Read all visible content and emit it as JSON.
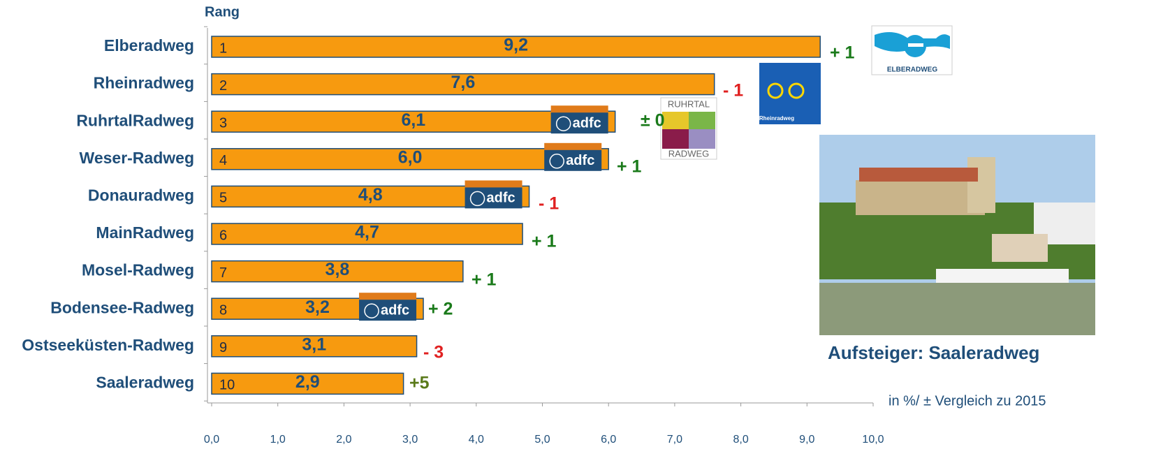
{
  "chart_data": {
    "type": "bar",
    "orientation": "horizontal",
    "y_axis_title": "Rang",
    "categories": [
      "Elberadweg",
      "Rheinradweg",
      "RuhrtalRadweg",
      "Weser-Radweg",
      "Donauradweg",
      "MainRadweg",
      "Mosel-Radweg",
      "Bodensee-Radweg",
      "Ostseeküsten-Radweg",
      "Saaleradweg"
    ],
    "values": [
      9.2,
      7.6,
      6.1,
      6.0,
      4.8,
      4.7,
      3.8,
      3.2,
      3.1,
      2.9
    ],
    "value_labels": [
      "9,2",
      "7,6",
      "6,1",
      "6,0",
      "4,8",
      "4,7",
      "3,8",
      "3,2",
      "3,1",
      "2,9"
    ],
    "ranks": [
      1,
      2,
      3,
      4,
      5,
      6,
      7,
      8,
      9,
      10
    ],
    "changes": [
      "+ 1",
      "- 1",
      "± 0",
      "+ 1",
      "- 1",
      "+ 1",
      "+ 1",
      "+ 2",
      "- 3",
      "+5"
    ],
    "change_colors": [
      "#1a7a1a",
      "#e02020",
      "#1a7a1a",
      "#1a7a1a",
      "#e02020",
      "#1a7a1a",
      "#1a7a1a",
      "#1a7a1a",
      "#e02020",
      "#5a7a1a"
    ],
    "color": "#f79a0f",
    "xlim": [
      0,
      10
    ],
    "xticks": [
      {
        "value": 0,
        "label": "0,0"
      },
      {
        "value": 1,
        "label": "1,0"
      },
      {
        "value": 2,
        "label": "2,0"
      },
      {
        "value": 3,
        "label": "3,0"
      },
      {
        "value": 4,
        "label": "4,0"
      },
      {
        "value": 5,
        "label": "5,0"
      },
      {
        "value": 6,
        "label": "6,0"
      },
      {
        "value": 7,
        "label": "7,0"
      },
      {
        "value": 8,
        "label": "8,0"
      },
      {
        "value": 9,
        "label": "9,0"
      },
      {
        "value": 10,
        "label": "10,0"
      }
    ],
    "grid": false,
    "note": "in %/ ± Vergleich zu 2015",
    "photo_caption": "Aufsteiger: Saaleradweg",
    "logos": {
      "adfc": "adfc",
      "ruhrtal_top": "RUHRTAL",
      "ruhrtal_bottom": "RADWEG",
      "elbe": "ELBERADWEG",
      "rhein": "Rheinradweg"
    }
  }
}
